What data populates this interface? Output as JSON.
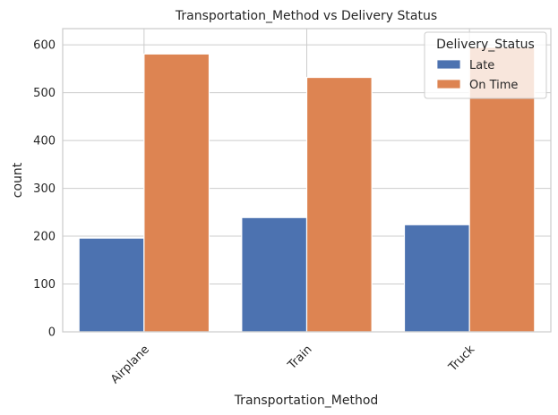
{
  "chart_data": {
    "type": "bar",
    "title": "Transportation_Method vs Delivery Status",
    "xlabel": "Transportation_Method",
    "ylabel": "count",
    "categories": [
      "Airplane",
      "Train",
      "Truck"
    ],
    "series": [
      {
        "name": "Late",
        "values": [
          196,
          239,
          224
        ],
        "color": "#4c72b0"
      },
      {
        "name": "On Time",
        "values": [
          581,
          532,
          595
        ],
        "color": "#dd8452"
      }
    ],
    "ylim": [
      0,
      634
    ],
    "yticks": [
      0,
      100,
      200,
      300,
      400,
      500,
      600
    ],
    "grid": true,
    "legend": {
      "title": "Delivery_Status",
      "placement": "top-right"
    }
  }
}
